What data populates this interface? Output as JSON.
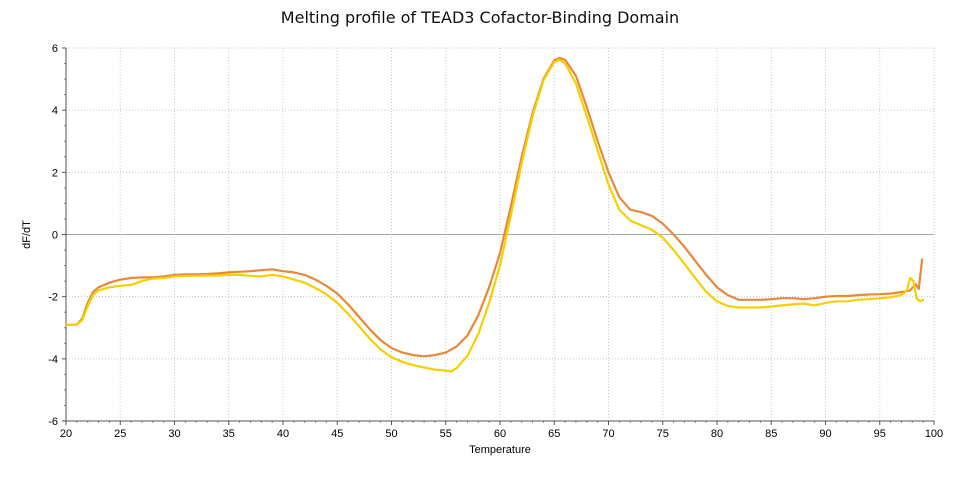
{
  "chart_data": {
    "type": "line",
    "title": "Melting profile of TEAD3 Cofactor-Binding Domain",
    "xlabel": "Temperature",
    "ylabel": "dF/dT",
    "xlim": [
      20,
      100
    ],
    "ylim": [
      -6,
      6
    ],
    "xticks": [
      20,
      25,
      30,
      35,
      40,
      45,
      50,
      55,
      60,
      65,
      70,
      75,
      80,
      85,
      90,
      95,
      100
    ],
    "yticks": [
      -6,
      -4,
      -2,
      0,
      2,
      4,
      6
    ],
    "grid": true,
    "zero_line": true,
    "series": [
      {
        "color": "#E8883A",
        "points": [
          [
            20,
            -2.9
          ],
          [
            21,
            -2.9
          ],
          [
            21.5,
            -2.7
          ],
          [
            22,
            -2.2
          ],
          [
            22.5,
            -1.85
          ],
          [
            23,
            -1.7
          ],
          [
            24,
            -1.55
          ],
          [
            25,
            -1.45
          ],
          [
            26,
            -1.4
          ],
          [
            27,
            -1.38
          ],
          [
            28,
            -1.38
          ],
          [
            29,
            -1.35
          ],
          [
            30,
            -1.3
          ],
          [
            31,
            -1.28
          ],
          [
            32,
            -1.28
          ],
          [
            33,
            -1.27
          ],
          [
            34,
            -1.25
          ],
          [
            35,
            -1.22
          ],
          [
            36,
            -1.2
          ],
          [
            37,
            -1.18
          ],
          [
            38,
            -1.15
          ],
          [
            39,
            -1.12
          ],
          [
            40,
            -1.18
          ],
          [
            41,
            -1.22
          ],
          [
            42,
            -1.3
          ],
          [
            43,
            -1.45
          ],
          [
            44,
            -1.65
          ],
          [
            45,
            -1.9
          ],
          [
            46,
            -2.25
          ],
          [
            47,
            -2.65
          ],
          [
            48,
            -3.05
          ],
          [
            49,
            -3.4
          ],
          [
            50,
            -3.65
          ],
          [
            51,
            -3.8
          ],
          [
            52,
            -3.88
          ],
          [
            53,
            -3.92
          ],
          [
            54,
            -3.88
          ],
          [
            55,
            -3.8
          ],
          [
            56,
            -3.6
          ],
          [
            57,
            -3.25
          ],
          [
            58,
            -2.6
          ],
          [
            59,
            -1.7
          ],
          [
            60,
            -0.6
          ],
          [
            61,
            0.9
          ],
          [
            62,
            2.5
          ],
          [
            63,
            3.9
          ],
          [
            64,
            5.0
          ],
          [
            65,
            5.6
          ],
          [
            65.5,
            5.68
          ],
          [
            66,
            5.62
          ],
          [
            67,
            5.1
          ],
          [
            68,
            4.1
          ],
          [
            69,
            3.0
          ],
          [
            70,
            2.0
          ],
          [
            71,
            1.2
          ],
          [
            72,
            0.8
          ],
          [
            73,
            0.72
          ],
          [
            74,
            0.6
          ],
          [
            75,
            0.35
          ],
          [
            76,
            0.0
          ],
          [
            77,
            -0.4
          ],
          [
            78,
            -0.85
          ],
          [
            79,
            -1.3
          ],
          [
            80,
            -1.7
          ],
          [
            81,
            -1.95
          ],
          [
            82,
            -2.1
          ],
          [
            83,
            -2.1
          ],
          [
            84,
            -2.1
          ],
          [
            85,
            -2.08
          ],
          [
            86,
            -2.05
          ],
          [
            87,
            -2.05
          ],
          [
            88,
            -2.08
          ],
          [
            89,
            -2.05
          ],
          [
            90,
            -2.0
          ],
          [
            91,
            -1.98
          ],
          [
            92,
            -1.98
          ],
          [
            93,
            -1.95
          ],
          [
            94,
            -1.93
          ],
          [
            95,
            -1.92
          ],
          [
            96,
            -1.9
          ],
          [
            97,
            -1.85
          ],
          [
            97.8,
            -1.8
          ],
          [
            98.3,
            -1.6
          ],
          [
            98.6,
            -1.75
          ],
          [
            98.9,
            -0.8
          ]
        ]
      },
      {
        "color": "#F4D000",
        "points": [
          [
            20,
            -2.9
          ],
          [
            21,
            -2.9
          ],
          [
            21.5,
            -2.75
          ],
          [
            22,
            -2.3
          ],
          [
            22.5,
            -1.95
          ],
          [
            23,
            -1.8
          ],
          [
            24,
            -1.7
          ],
          [
            25,
            -1.65
          ],
          [
            26,
            -1.62
          ],
          [
            27,
            -1.5
          ],
          [
            28,
            -1.42
          ],
          [
            29,
            -1.4
          ],
          [
            30,
            -1.35
          ],
          [
            31,
            -1.33
          ],
          [
            32,
            -1.33
          ],
          [
            33,
            -1.32
          ],
          [
            34,
            -1.32
          ],
          [
            35,
            -1.3
          ],
          [
            36,
            -1.3
          ],
          [
            37,
            -1.33
          ],
          [
            38,
            -1.35
          ],
          [
            39,
            -1.3
          ],
          [
            40,
            -1.35
          ],
          [
            41,
            -1.45
          ],
          [
            42,
            -1.55
          ],
          [
            43,
            -1.72
          ],
          [
            44,
            -1.92
          ],
          [
            45,
            -2.2
          ],
          [
            46,
            -2.55
          ],
          [
            47,
            -2.95
          ],
          [
            48,
            -3.35
          ],
          [
            49,
            -3.7
          ],
          [
            50,
            -3.95
          ],
          [
            51,
            -4.1
          ],
          [
            52,
            -4.2
          ],
          [
            53,
            -4.28
          ],
          [
            54,
            -4.35
          ],
          [
            55,
            -4.38
          ],
          [
            55.5,
            -4.4
          ],
          [
            56,
            -4.3
          ],
          [
            57,
            -3.9
          ],
          [
            58,
            -3.2
          ],
          [
            59,
            -2.2
          ],
          [
            60,
            -1.0
          ],
          [
            61,
            0.6
          ],
          [
            62,
            2.3
          ],
          [
            63,
            3.8
          ],
          [
            64,
            4.95
          ],
          [
            65,
            5.55
          ],
          [
            65.5,
            5.62
          ],
          [
            66,
            5.5
          ],
          [
            67,
            4.85
          ],
          [
            68,
            3.8
          ],
          [
            69,
            2.7
          ],
          [
            70,
            1.6
          ],
          [
            71,
            0.8
          ],
          [
            72,
            0.45
          ],
          [
            73,
            0.3
          ],
          [
            74,
            0.15
          ],
          [
            75,
            -0.1
          ],
          [
            76,
            -0.5
          ],
          [
            77,
            -0.95
          ],
          [
            78,
            -1.4
          ],
          [
            79,
            -1.85
          ],
          [
            80,
            -2.15
          ],
          [
            81,
            -2.3
          ],
          [
            82,
            -2.35
          ],
          [
            83,
            -2.35
          ],
          [
            84,
            -2.35
          ],
          [
            85,
            -2.32
          ],
          [
            86,
            -2.28
          ],
          [
            87,
            -2.25
          ],
          [
            88,
            -2.22
          ],
          [
            89,
            -2.28
          ],
          [
            90,
            -2.2
          ],
          [
            91,
            -2.15
          ],
          [
            92,
            -2.15
          ],
          [
            93,
            -2.1
          ],
          [
            94,
            -2.08
          ],
          [
            95,
            -2.05
          ],
          [
            96,
            -2.02
          ],
          [
            97,
            -1.95
          ],
          [
            97.5,
            -1.8
          ],
          [
            97.8,
            -1.4
          ],
          [
            98.1,
            -1.5
          ],
          [
            98.4,
            -2.05
          ],
          [
            98.7,
            -2.15
          ],
          [
            99,
            -2.1
          ]
        ]
      }
    ]
  }
}
